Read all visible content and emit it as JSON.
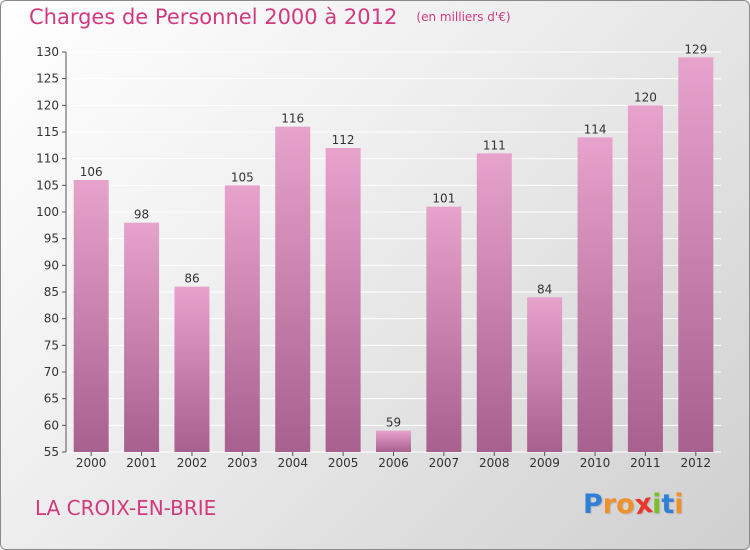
{
  "chart_data": {
    "type": "bar",
    "title": "Charges de Personnel 2000 à 2012",
    "subtitle": "(en milliers d'€)",
    "categories": [
      "2000",
      "2001",
      "2002",
      "2003",
      "2004",
      "2005",
      "2006",
      "2007",
      "2008",
      "2009",
      "2010",
      "2011",
      "2012"
    ],
    "values": [
      106,
      98,
      86,
      105,
      116,
      112,
      59,
      101,
      111,
      84,
      114,
      120,
      129
    ],
    "ylim": [
      55,
      130
    ],
    "yticks": [
      55,
      60,
      65,
      70,
      75,
      80,
      85,
      90,
      95,
      100,
      105,
      110,
      115,
      120,
      125,
      130
    ],
    "grid": true,
    "legend": "none",
    "xlabel": "",
    "ylabel": ""
  },
  "location_label": "LA CROIX-EN-BRIE",
  "brand": {
    "letters": [
      "P",
      "r",
      "o",
      "x",
      "i",
      "t",
      "i"
    ],
    "letter_colors": [
      "#2e7fd6",
      "#f0902a",
      "#f0902a",
      "#e8362a",
      "#7bbf2a",
      "#2e7fd6",
      "#f0902a"
    ]
  },
  "colors": {
    "accent": "#d2397f",
    "bar_top": "#e7a3cc",
    "bar_bottom": "#a8608e",
    "grid": "#ffffff"
  }
}
